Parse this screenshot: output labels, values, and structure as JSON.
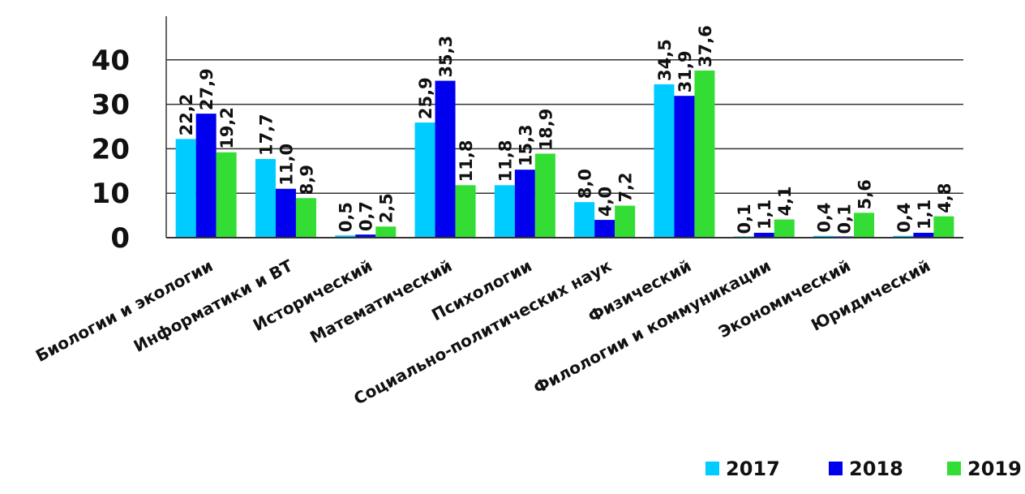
{
  "chart_data": {
    "type": "bar",
    "categories": [
      "Биологии и экологии",
      "Информатики  и ВТ",
      "Исторический",
      "Математический",
      "Психологии",
      "Социально-политических  наук",
      "Физический",
      "Филологии и коммуникации",
      "Экономический",
      "Юридический"
    ],
    "series": [
      {
        "name": "2017",
        "color": "#00ccff",
        "values": [
          22.2,
          17.7,
          0.5,
          25.9,
          11.8,
          8.0,
          34.5,
          0.1,
          0.4,
          0.4
        ],
        "labels": [
          "22,2",
          "17,7",
          "0,5",
          "25,9",
          "11,8",
          "8,0",
          "34,5",
          "0,1",
          "0,4",
          "0,4"
        ]
      },
      {
        "name": "2018",
        "color": "#0000ee",
        "values": [
          27.9,
          11.0,
          0.7,
          35.3,
          15.3,
          4.0,
          31.9,
          1.1,
          0.1,
          1.1
        ],
        "labels": [
          "27,9",
          "11,0",
          "0,7",
          "35,3",
          "15,3",
          "4,0",
          "31,9",
          "1,1",
          "0,1",
          "1,1"
        ]
      },
      {
        "name": "2019",
        "color": "#33dd33",
        "values": [
          19.2,
          8.9,
          2.5,
          11.8,
          18.9,
          7.2,
          37.6,
          4.1,
          5.6,
          4.8
        ],
        "labels": [
          "19,2",
          "8,9",
          "2,5",
          "11,8",
          "18,9",
          "7,2",
          "37,6",
          "4,1",
          "5,6",
          "4,8"
        ]
      }
    ],
    "y_ticks": [
      "0",
      "10",
      "20",
      "30",
      "40"
    ],
    "ylim": [
      0,
      50
    ],
    "grid": true,
    "legend_position": "bottom-right"
  }
}
